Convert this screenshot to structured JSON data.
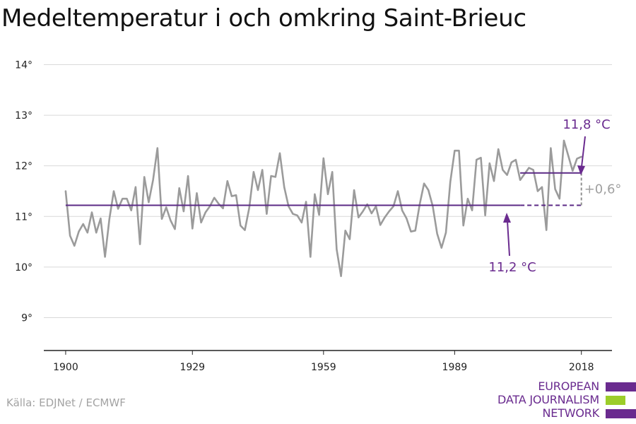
{
  "title": "Medeltemperatur i och omkring Saint-Brieuc",
  "source": "Källa: EDJNet / ECMWF",
  "logo": {
    "lines": [
      "EUROPEAN",
      "DATA JOURNALISM",
      "NETWORK"
    ]
  },
  "colors": {
    "series": "#9b9b9b",
    "baseline": "#5b2a86",
    "recent": "#5b2a86",
    "annotation": "#6a2b8f",
    "grid": "#d9d9d9",
    "logo_purple": "#6a2b8f",
    "logo_green": "#9ccd2a"
  },
  "chart_data": {
    "type": "line",
    "title": "Medeltemperatur i och omkring Saint-Brieuc",
    "ylim": [
      8.35,
      14.3
    ],
    "xlim": [
      1895,
      2025
    ],
    "yticks": [
      9,
      10,
      11,
      12,
      13,
      14
    ],
    "ytick_labels": [
      "9°",
      "10°",
      "11°",
      "12°",
      "13°",
      "14°"
    ],
    "xticks": [
      1900,
      1929,
      1959,
      1989,
      2018
    ],
    "xtick_labels": [
      "1900",
      "1929",
      "1959",
      "1989",
      "2018"
    ],
    "grid": true,
    "series": [
      {
        "x_start": 1900,
        "values": [
          11.5,
          10.62,
          10.42,
          10.7,
          10.85,
          10.68,
          11.08,
          10.68,
          10.96,
          10.2,
          10.95,
          11.5,
          11.15,
          11.35,
          11.35,
          11.12,
          11.58,
          10.45,
          11.78,
          11.28,
          11.72,
          12.35,
          10.95,
          11.18,
          10.92,
          10.75,
          11.56,
          11.1,
          11.8,
          10.76,
          11.46,
          10.88,
          11.08,
          11.2,
          11.37,
          11.25,
          11.16,
          11.7,
          11.4,
          11.42,
          10.82,
          10.73,
          11.17,
          11.88,
          11.52,
          11.92,
          11.05,
          11.8,
          11.78,
          12.25,
          11.58,
          11.2,
          11.05,
          11.02,
          10.88,
          11.29,
          10.2,
          11.44,
          11.03,
          12.15,
          11.44,
          11.88,
          10.35,
          9.82,
          10.72,
          10.55,
          11.52,
          10.98,
          11.1,
          11.24,
          11.06,
          11.2,
          10.83,
          10.98,
          11.1,
          11.2,
          11.5,
          11.12,
          10.96,
          10.7,
          10.72,
          11.24,
          11.65,
          11.52,
          11.2,
          10.66,
          10.38,
          10.68,
          11.68,
          12.3,
          12.3,
          10.82,
          11.35,
          11.12,
          12.12,
          12.16,
          11.02,
          12.05,
          11.7,
          12.33,
          11.92,
          11.82,
          12.07,
          12.12,
          11.72,
          11.84,
          11.96,
          11.92,
          11.5,
          11.58,
          10.73,
          12.35,
          11.54,
          11.35,
          12.5,
          12.2,
          11.9,
          12.14,
          12.18
        ]
      }
    ],
    "reference_lines": [
      {
        "label": "11,2 °C",
        "value": 11.22,
        "x_from": 1900,
        "x_to": 2004,
        "style": "solid",
        "x_dashed_to": 2018
      },
      {
        "label": "11,8 °C",
        "value": 11.86,
        "x_from": 2004,
        "x_to": 2018,
        "style": "solid"
      }
    ],
    "difference_label": "+0,6°"
  }
}
